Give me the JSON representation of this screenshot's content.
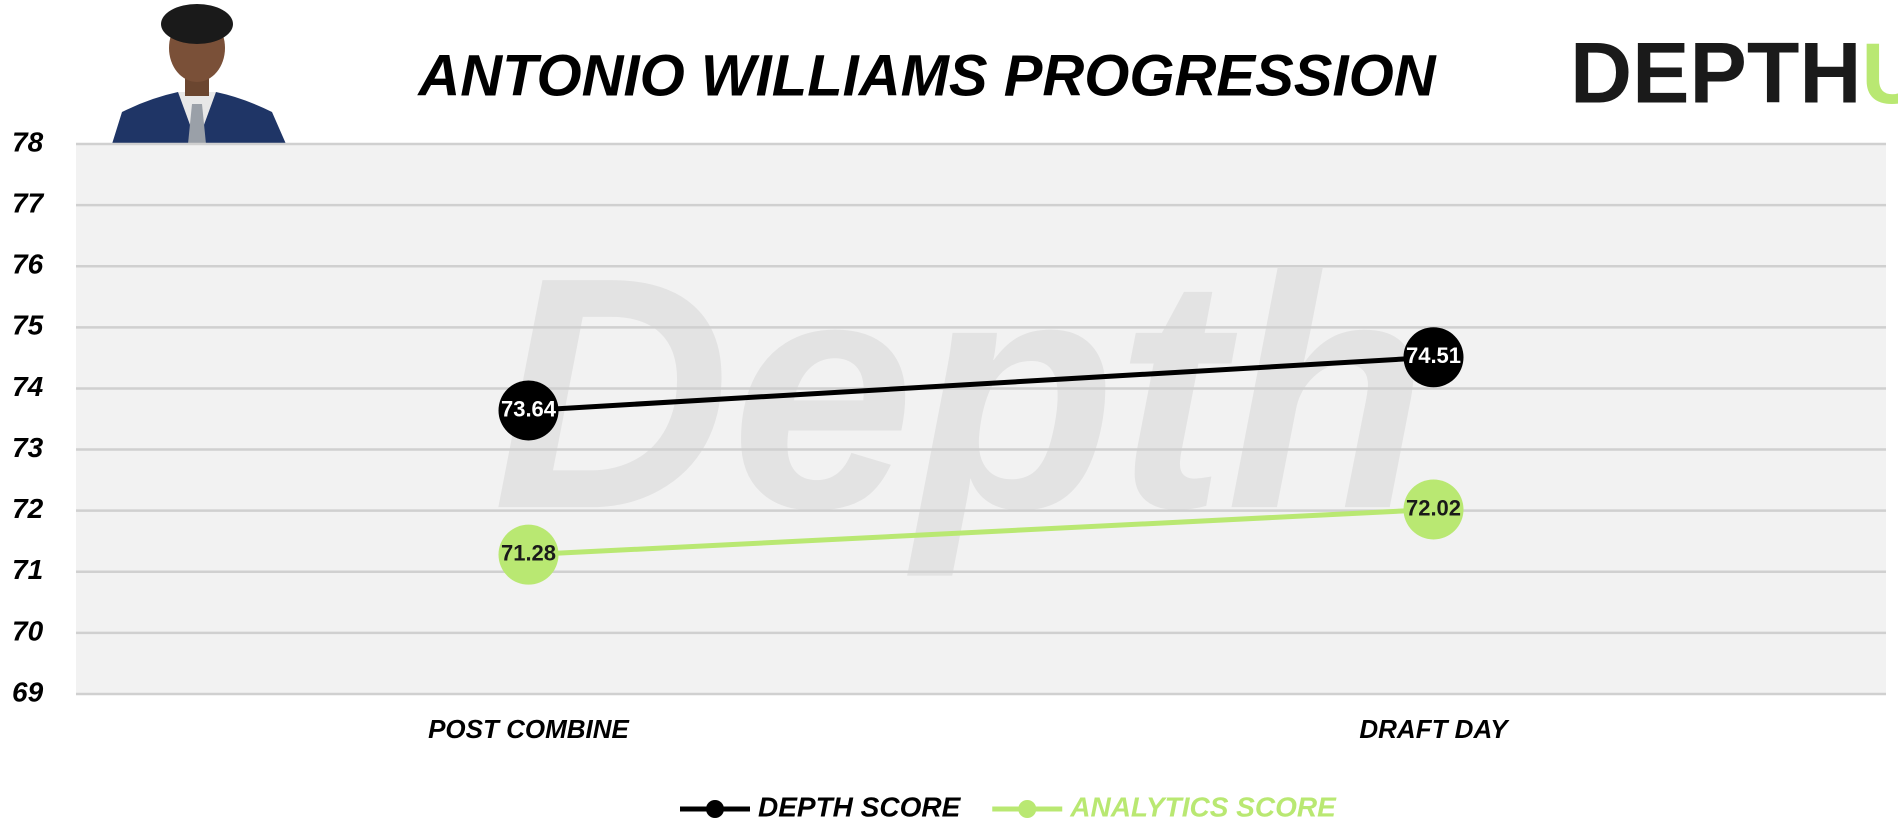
{
  "chart_data": {
    "type": "line",
    "title": "ANTONIO WILLIAMS PROGRESSION",
    "categories": [
      "POST COMBINE",
      "DRAFT DAY"
    ],
    "series": [
      {
        "name": "DEPTH SCORE",
        "color": "#000000",
        "values": [
          73.64,
          74.51
        ]
      },
      {
        "name": "ANALYTICS SCORE",
        "color": "#b9e872",
        "values": [
          71.28,
          72.02
        ]
      }
    ],
    "ylim": [
      69,
      78
    ],
    "yticks": [
      69,
      70,
      71,
      72,
      73,
      74,
      75,
      76,
      77,
      78
    ],
    "grid": true,
    "legend": "bottom"
  },
  "logo": {
    "text": "DEPTH",
    "accent": "U"
  },
  "watermark": "Depth"
}
